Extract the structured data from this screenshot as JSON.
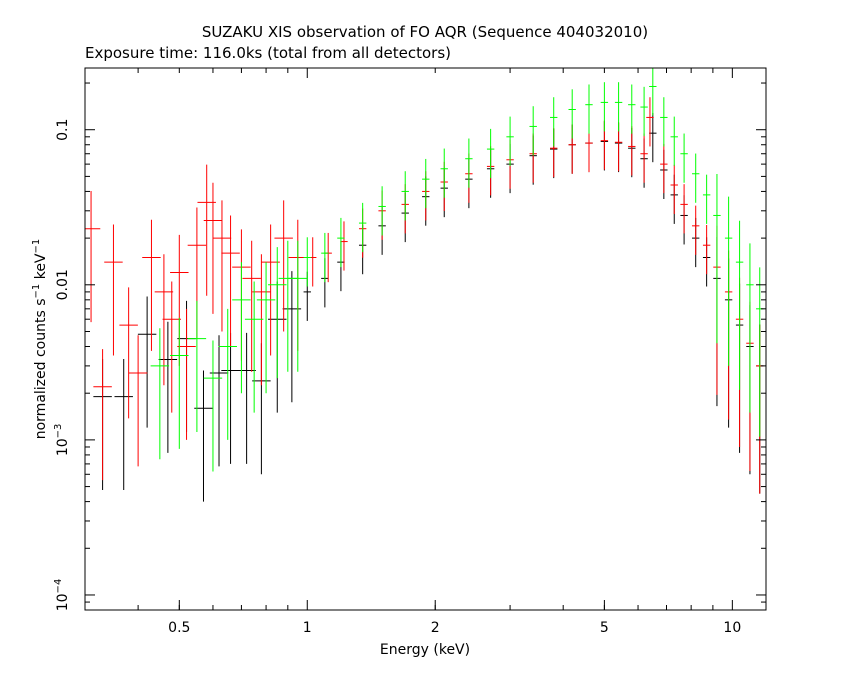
{
  "chart_data": {
    "type": "scatter",
    "title": "SUZAKU XIS observation of FO AQR (Sequence 404032010)",
    "subtitle": "Exposure time: 116.0ks (total from all detectors)",
    "xlabel": "Energy (keV)",
    "ylabel": "normalized counts s^-1 keV^-1",
    "xscale": "log",
    "yscale": "log",
    "xlim": [
      0.3,
      12.0
    ],
    "ylim": [
      8e-05,
      0.25
    ],
    "xticks": [
      {
        "value": 0.5,
        "label": "0.5"
      },
      {
        "value": 1,
        "label": "1"
      },
      {
        "value": 2,
        "label": "2"
      },
      {
        "value": 5,
        "label": "5"
      },
      {
        "value": 10,
        "label": "10"
      }
    ],
    "yticks": [
      {
        "value": 0.1,
        "label": "0.1"
      },
      {
        "value": 0.01,
        "label": "0.01"
      },
      {
        "value": 0.001,
        "label": "10^-3"
      },
      {
        "value": 0.0001,
        "label": "10^-4"
      }
    ],
    "grid": false,
    "series": [
      {
        "color": "#000000",
        "points": [
          [
            0.33,
            0.0019
          ],
          [
            0.37,
            0.0019
          ],
          [
            0.42,
            0.0048
          ],
          [
            0.47,
            0.0033
          ],
          [
            0.52,
            0.0045
          ],
          [
            0.57,
            0.0016
          ],
          [
            0.62,
            0.0027
          ],
          [
            0.66,
            0.0028
          ],
          [
            0.72,
            0.0028
          ],
          [
            0.78,
            0.0024
          ],
          [
            0.85,
            0.006
          ],
          [
            0.92,
            0.007
          ],
          [
            1.0,
            0.009
          ],
          [
            1.1,
            0.011
          ],
          [
            1.2,
            0.014
          ],
          [
            1.35,
            0.018
          ],
          [
            1.5,
            0.024
          ],
          [
            1.7,
            0.029
          ],
          [
            1.9,
            0.037
          ],
          [
            2.1,
            0.042
          ],
          [
            2.4,
            0.048
          ],
          [
            2.7,
            0.056
          ],
          [
            3.0,
            0.06
          ],
          [
            3.4,
            0.068
          ],
          [
            3.8,
            0.075
          ],
          [
            4.2,
            0.08
          ],
          [
            4.6,
            0.082
          ],
          [
            5.0,
            0.084
          ],
          [
            5.4,
            0.082
          ],
          [
            5.8,
            0.076
          ],
          [
            6.2,
            0.065
          ],
          [
            6.5,
            0.095
          ],
          [
            6.9,
            0.055
          ],
          [
            7.3,
            0.038
          ],
          [
            7.7,
            0.028
          ],
          [
            8.2,
            0.02
          ],
          [
            8.7,
            0.015
          ],
          [
            9.2,
            0.011
          ],
          [
            9.8,
            0.008
          ],
          [
            10.4,
            0.0055
          ],
          [
            11.0,
            0.004
          ],
          [
            11.6,
            0.003
          ]
        ]
      },
      {
        "color": "#ff0000",
        "points": [
          [
            0.31,
            0.023
          ],
          [
            0.33,
            0.0022
          ],
          [
            0.35,
            0.014
          ],
          [
            0.38,
            0.0055
          ],
          [
            0.4,
            0.0027
          ],
          [
            0.43,
            0.015
          ],
          [
            0.46,
            0.009
          ],
          [
            0.48,
            0.006
          ],
          [
            0.5,
            0.012
          ],
          [
            0.52,
            0.004
          ],
          [
            0.55,
            0.018
          ],
          [
            0.58,
            0.034
          ],
          [
            0.6,
            0.026
          ],
          [
            0.63,
            0.02
          ],
          [
            0.66,
            0.016
          ],
          [
            0.7,
            0.013
          ],
          [
            0.74,
            0.011
          ],
          [
            0.78,
            0.009
          ],
          [
            0.82,
            0.014
          ],
          [
            0.88,
            0.02
          ],
          [
            0.95,
            0.015
          ],
          [
            1.03,
            0.015
          ],
          [
            1.12,
            0.016
          ],
          [
            1.22,
            0.019
          ],
          [
            1.35,
            0.023
          ],
          [
            1.5,
            0.03
          ],
          [
            1.7,
            0.033
          ],
          [
            1.9,
            0.04
          ],
          [
            2.1,
            0.046
          ],
          [
            2.4,
            0.052
          ],
          [
            2.7,
            0.058
          ],
          [
            3.0,
            0.064
          ],
          [
            3.4,
            0.07
          ],
          [
            3.8,
            0.076
          ],
          [
            4.2,
            0.08
          ],
          [
            4.6,
            0.082
          ],
          [
            5.0,
            0.085
          ],
          [
            5.4,
            0.083
          ],
          [
            5.8,
            0.078
          ],
          [
            6.2,
            0.07
          ],
          [
            6.4,
            0.12
          ],
          [
            6.9,
            0.06
          ],
          [
            7.3,
            0.044
          ],
          [
            7.7,
            0.033
          ],
          [
            8.2,
            0.024
          ],
          [
            8.7,
            0.018
          ],
          [
            9.2,
            0.013
          ],
          [
            9.8,
            0.009
          ],
          [
            10.4,
            0.006
          ],
          [
            11.0,
            0.0042
          ],
          [
            11.6,
            0.003
          ]
        ]
      },
      {
        "color": "#00ff00",
        "points": [
          [
            0.45,
            0.003
          ],
          [
            0.5,
            0.0035
          ],
          [
            0.55,
            0.0045
          ],
          [
            0.6,
            0.0025
          ],
          [
            0.65,
            0.004
          ],
          [
            0.7,
            0.008
          ],
          [
            0.75,
            0.006
          ],
          [
            0.8,
            0.008
          ],
          [
            0.85,
            0.01
          ],
          [
            0.9,
            0.011
          ],
          [
            0.95,
            0.011
          ],
          [
            1.0,
            0.015
          ],
          [
            1.1,
            0.016
          ],
          [
            1.2,
            0.02
          ],
          [
            1.35,
            0.025
          ],
          [
            1.5,
            0.032
          ],
          [
            1.7,
            0.04
          ],
          [
            1.9,
            0.048
          ],
          [
            2.1,
            0.056
          ],
          [
            2.4,
            0.065
          ],
          [
            2.7,
            0.075
          ],
          [
            3.0,
            0.09
          ],
          [
            3.4,
            0.105
          ],
          [
            3.8,
            0.12
          ],
          [
            4.2,
            0.135
          ],
          [
            4.6,
            0.145
          ],
          [
            5.0,
            0.15
          ],
          [
            5.4,
            0.15
          ],
          [
            5.8,
            0.145
          ],
          [
            6.2,
            0.14
          ],
          [
            6.5,
            0.19
          ],
          [
            6.9,
            0.12
          ],
          [
            7.3,
            0.09
          ],
          [
            7.7,
            0.07
          ],
          [
            8.2,
            0.052
          ],
          [
            8.7,
            0.038
          ],
          [
            9.2,
            0.028
          ],
          [
            9.8,
            0.02
          ],
          [
            10.4,
            0.014
          ],
          [
            11.0,
            0.01
          ],
          [
            11.6,
            0.007
          ]
        ]
      }
    ]
  }
}
